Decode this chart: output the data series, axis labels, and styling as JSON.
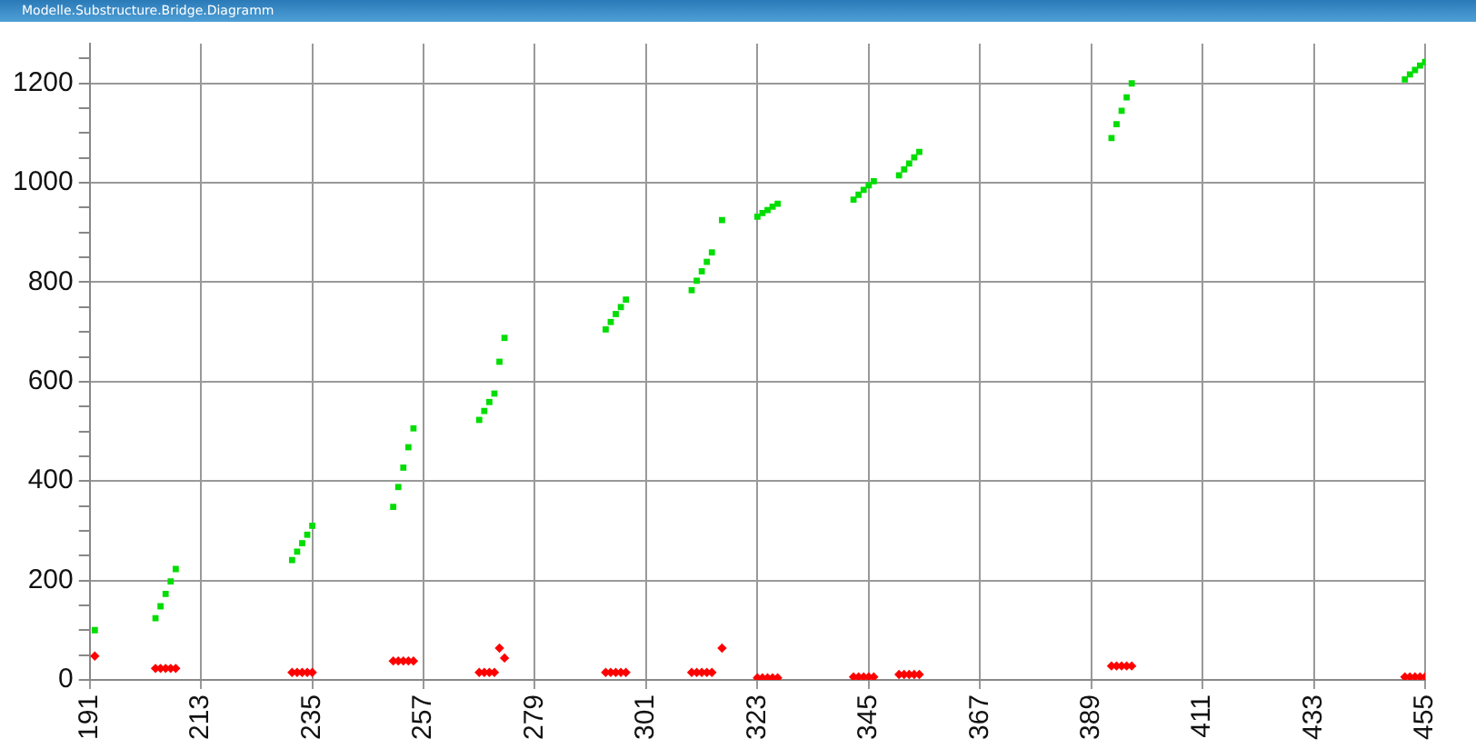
{
  "chart_data": {
    "type": "scatter",
    "title": "Modelle.Substructure.Bridge.Diagramm",
    "legend": false,
    "grid": true,
    "xlim": [
      191,
      455
    ],
    "xticks": [
      191,
      213,
      235,
      257,
      279,
      301,
      323,
      345,
      367,
      389,
      411,
      433,
      455
    ],
    "ylim": [
      0,
      1280
    ],
    "yticks": [
      0,
      {
        "value": 50,
        "label": null
      },
      {
        "value": 100,
        "label": null
      },
      {
        "value": 150,
        "label": null
      },
      200,
      {
        "value": 250,
        "label": null
      },
      {
        "value": 300,
        "label": null
      },
      {
        "value": 350,
        "label": null
      },
      400,
      {
        "value": 450,
        "label": null
      },
      {
        "value": 500,
        "label": null
      },
      {
        "value": 550,
        "label": null
      },
      600,
      {
        "value": 650,
        "label": null
      },
      {
        "value": 700,
        "label": null
      },
      {
        "value": 750,
        "label": null
      },
      800,
      {
        "value": 850,
        "label": null
      },
      {
        "value": 900,
        "label": null
      },
      {
        "value": 950,
        "label": null
      },
      1000,
      {
        "value": 1050,
        "label": null
      },
      {
        "value": 1100,
        "label": null
      },
      {
        "value": 1150,
        "label": null
      },
      1200,
      {
        "value": 1250,
        "label": null
      }
    ],
    "series": [
      {
        "color": "#00dd00",
        "marker": "square",
        "x": [
          192,
          204,
          205,
          206,
          207,
          208,
          231,
          232,
          233,
          234,
          235,
          251,
          252,
          253,
          254,
          255,
          268,
          269,
          270,
          271,
          272,
          273,
          293,
          294,
          295,
          296,
          297,
          310,
          311,
          312,
          313,
          314,
          316,
          323,
          324,
          325,
          326,
          327,
          342,
          343,
          344,
          345,
          346,
          351,
          352,
          353,
          354,
          355,
          393,
          394,
          395,
          396,
          397,
          451,
          452,
          453,
          454,
          455
        ],
        "values": [
          100,
          124,
          148,
          173,
          198,
          223,
          241,
          258,
          275,
          292,
          310,
          348,
          388,
          427,
          468,
          506,
          523,
          541,
          559,
          576,
          640,
          688,
          705,
          720,
          736,
          750,
          765,
          784,
          803,
          822,
          841,
          860,
          925,
          932,
          939,
          945,
          952,
          958,
          966,
          976,
          986,
          995,
          1003,
          1015,
          1027,
          1039,
          1051,
          1062,
          1090,
          1118,
          1145,
          1172,
          1200,
          1208,
          1218,
          1227,
          1236,
          1243
        ]
      },
      {
        "color": "#ff0000",
        "marker": "diamond",
        "x": [
          192,
          204,
          205,
          206,
          207,
          208,
          231,
          232,
          233,
          234,
          235,
          251,
          252,
          253,
          254,
          255,
          268,
          269,
          270,
          271,
          272,
          273,
          293,
          294,
          295,
          296,
          297,
          310,
          311,
          312,
          313,
          314,
          316,
          323,
          324,
          325,
          326,
          327,
          342,
          343,
          344,
          345,
          346,
          351,
          352,
          353,
          354,
          355,
          393,
          394,
          395,
          396,
          397,
          451,
          452,
          453,
          454,
          455
        ],
        "values": [
          48,
          23,
          23,
          23,
          23,
          23,
          15,
          15,
          15,
          15,
          15,
          38,
          38,
          38,
          38,
          38,
          15,
          15,
          15,
          15,
          64,
          44,
          15,
          15,
          15,
          15,
          15,
          15,
          15,
          15,
          15,
          15,
          64,
          4,
          4,
          4,
          4,
          4,
          6,
          6,
          6,
          6,
          6,
          11,
          11,
          11,
          11,
          11,
          28,
          28,
          28,
          28,
          28,
          6,
          6,
          6,
          6,
          6
        ]
      }
    ]
  }
}
